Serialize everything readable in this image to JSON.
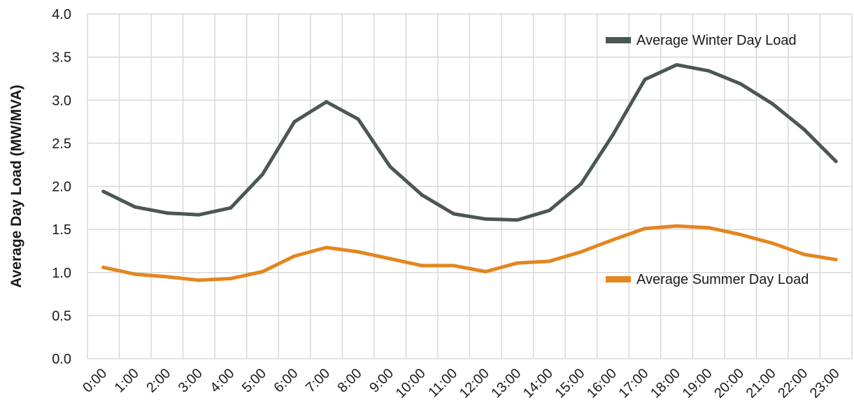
{
  "chart_data": {
    "type": "line",
    "title": "",
    "xlabel": "",
    "ylabel": "Average Day Load (MW/MVA)",
    "categories": [
      "0:00",
      "1:00",
      "2:00",
      "3:00",
      "4:00",
      "5:00",
      "6:00",
      "7:00",
      "8:00",
      "9:00",
      "10:00",
      "11:00",
      "12:00",
      "13:00",
      "14:00",
      "15:00",
      "16:00",
      "17:00",
      "18:00",
      "19:00",
      "20:00",
      "21:00",
      "22:00",
      "23:00"
    ],
    "ylim": [
      0,
      4.0
    ],
    "yticks": [
      "0.0",
      "0.5",
      "1.0",
      "1.5",
      "2.0",
      "2.5",
      "3.0",
      "3.5",
      "4.0"
    ],
    "grid": true,
    "legend_placement": "right (inline near lines)",
    "series": [
      {
        "name": "Average Winter Day Load",
        "color": "#4d5656",
        "values": [
          1.94,
          1.76,
          1.69,
          1.67,
          1.75,
          2.14,
          2.75,
          2.98,
          2.78,
          2.23,
          1.9,
          1.68,
          1.62,
          1.61,
          1.72,
          2.03,
          2.6,
          3.24,
          3.41,
          3.34,
          3.19,
          2.96,
          2.66,
          2.29
        ]
      },
      {
        "name": "Average Summer Day Load",
        "color": "#e3861f",
        "values": [
          1.06,
          0.98,
          0.95,
          0.91,
          0.93,
          1.01,
          1.19,
          1.29,
          1.24,
          1.16,
          1.08,
          1.08,
          1.01,
          1.11,
          1.13,
          1.24,
          1.38,
          1.51,
          1.54,
          1.52,
          1.44,
          1.34,
          1.21,
          1.15
        ]
      }
    ]
  }
}
